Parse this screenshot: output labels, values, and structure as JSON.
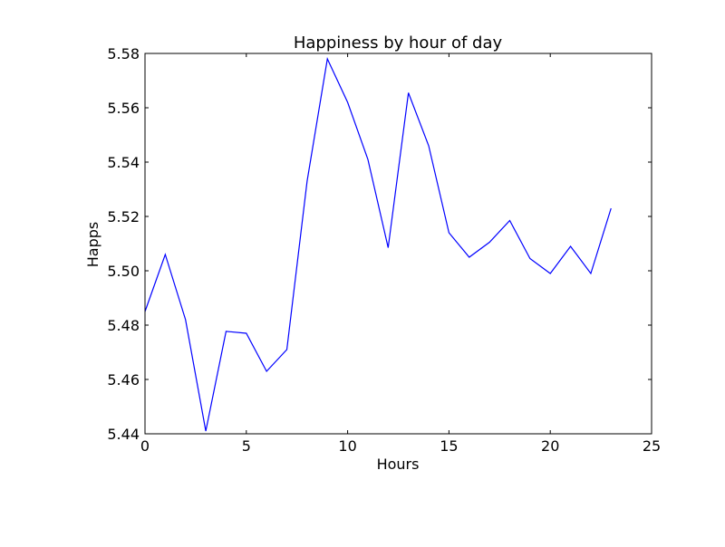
{
  "chart_data": {
    "type": "line",
    "title": "Happiness by hour of day",
    "xlabel": "Hours",
    "ylabel": "Happs",
    "xlim": [
      0,
      25
    ],
    "ylim": [
      5.44,
      5.58
    ],
    "xticks": [
      "0",
      "5",
      "10",
      "15",
      "20",
      "25"
    ],
    "yticks": [
      "5.44",
      "5.46",
      "5.48",
      "5.50",
      "5.52",
      "5.54",
      "5.56",
      "5.58"
    ],
    "grid": false,
    "line_color": "#0000ff",
    "series": [
      {
        "x": [
          0,
          1,
          2,
          3,
          4,
          5,
          6,
          7,
          8,
          9,
          10,
          11,
          12,
          13,
          14,
          15,
          16,
          17,
          18,
          19,
          20,
          21,
          22,
          23
        ],
        "values": [
          5.485,
          5.506,
          5.482,
          5.441,
          5.4777,
          5.477,
          5.463,
          5.471,
          5.533,
          5.578,
          5.562,
          5.541,
          5.5085,
          5.5655,
          5.546,
          5.514,
          5.505,
          5.5105,
          5.5185,
          5.5045,
          5.499,
          5.509,
          5.499,
          5.523
        ]
      }
    ]
  }
}
